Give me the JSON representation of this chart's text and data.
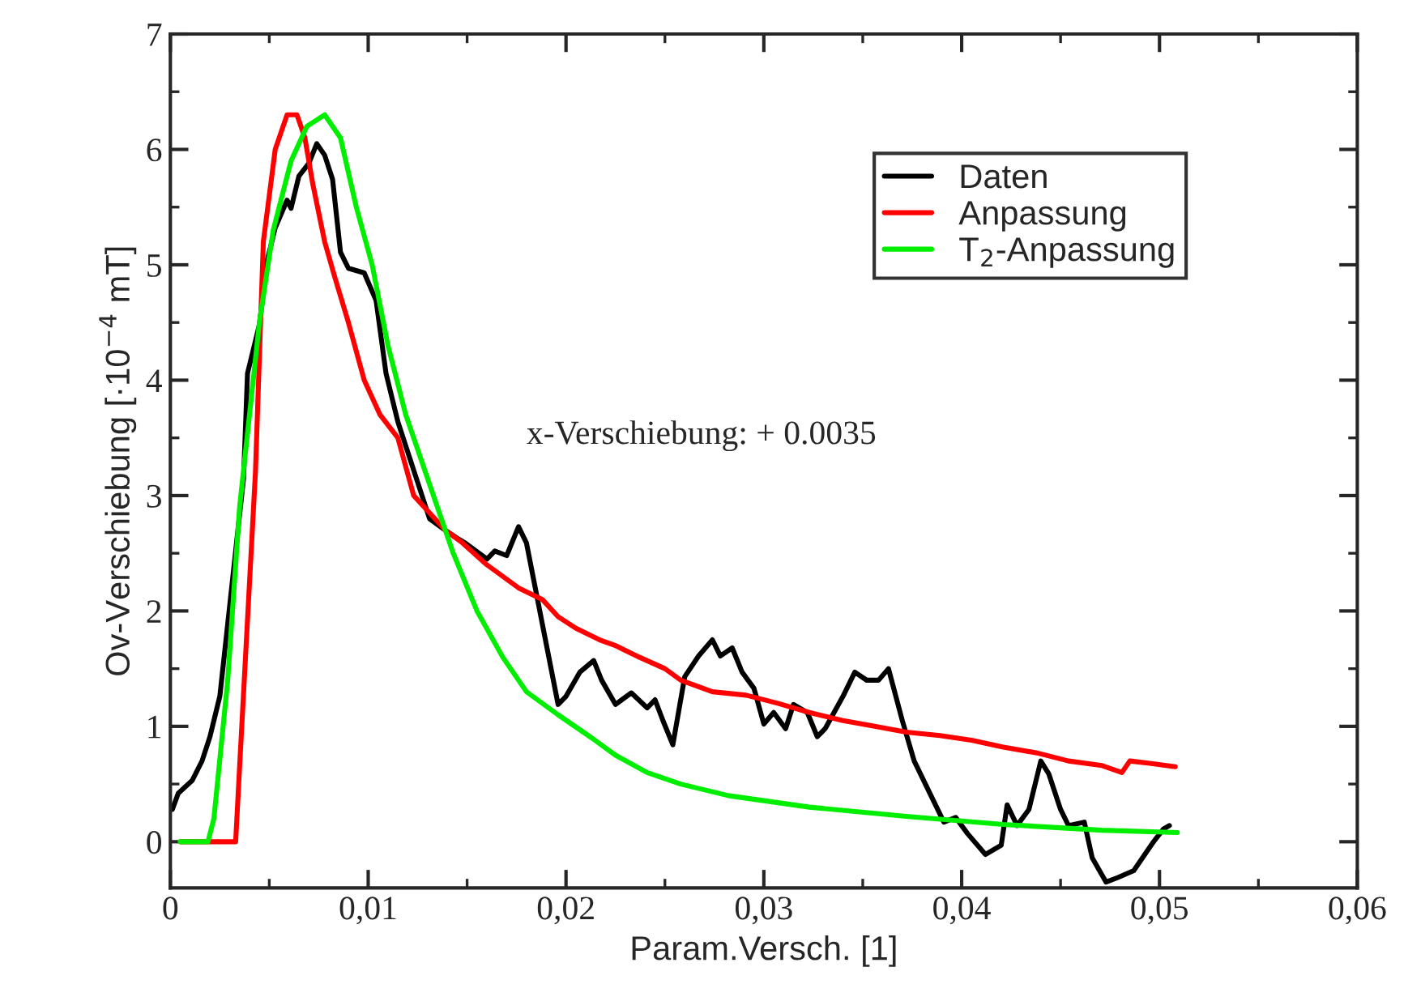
{
  "chart_data": {
    "type": "line",
    "xlabel": "Param.Versch. [1]",
    "ylabel": "Ov-Verschiebung [·10$^{−4}$ mT]",
    "xlim": [
      0,
      0.06
    ],
    "ylim": [
      -0.4,
      7
    ],
    "xticks": [
      0,
      {
        "value": 0.01,
        "label": "0,01"
      },
      {
        "value": 0.02,
        "label": "0,02"
      },
      {
        "value": 0.03,
        "label": "0,03"
      },
      {
        "value": 0.04,
        "label": "0,04"
      },
      {
        "value": 0.05,
        "label": "0,05"
      },
      {
        "value": 0.06,
        "label": "0,06"
      }
    ],
    "yticks": [
      0,
      1,
      2,
      3,
      4,
      5,
      6,
      7
    ],
    "grid": false,
    "legend": "top right",
    "marker": "none",
    "line_style": "solid",
    "annotations": [
      "x-Verschiebung: + 0.0035"
    ],
    "series": [
      {
        "name": "Daten",
        "color": "#000000",
        "x": [
          0.0001,
          0.0004,
          0.0011,
          0.0016,
          0.002,
          0.0025,
          0.0029,
          0.0033,
          0.0037,
          0.0039,
          0.0045,
          0.0049,
          0.0053,
          0.0059,
          0.0061,
          0.0065,
          0.007,
          0.0074,
          0.0078,
          0.0082,
          0.0086,
          0.009,
          0.0098,
          0.0104,
          0.0109,
          0.0115,
          0.0123,
          0.0131,
          0.0139,
          0.0145,
          0.0149,
          0.016,
          0.0164,
          0.017,
          0.0176,
          0.018,
          0.0188,
          0.0196,
          0.02,
          0.0207,
          0.0214,
          0.0218,
          0.0225,
          0.0233,
          0.0241,
          0.0245,
          0.0249,
          0.0254,
          0.026,
          0.0267,
          0.0274,
          0.0278,
          0.0284,
          0.0289,
          0.0295,
          0.03,
          0.0305,
          0.0311,
          0.0315,
          0.0322,
          0.0327,
          0.0331,
          0.034,
          0.0346,
          0.0352,
          0.0358,
          0.0363,
          0.037,
          0.0376,
          0.0391,
          0.0397,
          0.0403,
          0.0412,
          0.042,
          0.0423,
          0.0428,
          0.0434,
          0.044,
          0.0444,
          0.045,
          0.0454,
          0.0462,
          0.0466,
          0.0473,
          0.0479,
          0.0487,
          0.0497,
          0.0502,
          0.0505
        ],
        "values": [
          0.28,
          0.42,
          0.53,
          0.7,
          0.91,
          1.26,
          1.89,
          2.52,
          3.15,
          4.06,
          4.48,
          5.04,
          5.32,
          5.56,
          5.49,
          5.77,
          5.88,
          6.05,
          5.95,
          5.74,
          5.11,
          4.97,
          4.93,
          4.69,
          4.06,
          3.64,
          3.22,
          2.8,
          2.7,
          2.63,
          2.59,
          2.45,
          2.52,
          2.48,
          2.73,
          2.59,
          1.89,
          1.19,
          1.26,
          1.47,
          1.57,
          1.4,
          1.19,
          1.29,
          1.16,
          1.23,
          1.05,
          0.84,
          1.43,
          1.61,
          1.75,
          1.61,
          1.68,
          1.47,
          1.33,
          1.02,
          1.12,
          0.98,
          1.19,
          1.12,
          0.91,
          0.98,
          1.26,
          1.47,
          1.4,
          1.4,
          1.5,
          1.05,
          0.7,
          0.17,
          0.21,
          0.07,
          -0.11,
          -0.03,
          0.32,
          0.14,
          0.28,
          0.7,
          0.59,
          0.28,
          0.14,
          0.17,
          -0.14,
          -0.35,
          -0.31,
          -0.25,
          0,
          0.11,
          0.14
        ]
      },
      {
        "name": "Anpassung",
        "color": "#ff0000",
        "x": [
          0.0005,
          0.0033,
          0.0035,
          0.0043,
          0.0047,
          0.0053,
          0.0059,
          0.0064,
          0.0068,
          0.0072,
          0.0078,
          0.0083,
          0.009,
          0.0098,
          0.0106,
          0.0115,
          0.0123,
          0.0131,
          0.0139,
          0.0147,
          0.016,
          0.0168,
          0.0176,
          0.0188,
          0.0196,
          0.0205,
          0.0217,
          0.0225,
          0.0237,
          0.025,
          0.0258,
          0.0274,
          0.0291,
          0.0307,
          0.0323,
          0.034,
          0.0356,
          0.0372,
          0.0389,
          0.0405,
          0.0421,
          0.0438,
          0.0454,
          0.0471,
          0.0481,
          0.0485,
          0.0495,
          0.0508
        ],
        "values": [
          0,
          0,
          0.65,
          3.2,
          5.2,
          6.0,
          6.3,
          6.3,
          6.1,
          5.7,
          5.2,
          4.9,
          4.5,
          4.0,
          3.7,
          3.5,
          3.0,
          2.85,
          2.7,
          2.6,
          2.4,
          2.3,
          2.2,
          2.1,
          1.95,
          1.85,
          1.75,
          1.7,
          1.6,
          1.5,
          1.4,
          1.3,
          1.27,
          1.2,
          1.12,
          1.05,
          1.0,
          0.95,
          0.92,
          0.88,
          0.82,
          0.77,
          0.7,
          0.66,
          0.6,
          0.7,
          0.68,
          0.65
        ]
      },
      {
        "name": "T$_{2}$-Anpassung",
        "color": "#00ee00",
        "x": [
          0.0005,
          0.0019,
          0.0022,
          0.0029,
          0.0035,
          0.0045,
          0.0052,
          0.0061,
          0.0069,
          0.0078,
          0.0086,
          0.0094,
          0.0102,
          0.011,
          0.0119,
          0.0131,
          0.0143,
          0.0155,
          0.0168,
          0.018,
          0.0196,
          0.0213,
          0.0225,
          0.0241,
          0.0258,
          0.0282,
          0.0323,
          0.0372,
          0.0421,
          0.0471,
          0.0509
        ],
        "values": [
          0,
          0,
          0.2,
          1.4,
          2.9,
          4.5,
          5.3,
          5.9,
          6.2,
          6.3,
          6.1,
          5.5,
          5.0,
          4.3,
          3.7,
          3.1,
          2.5,
          2.0,
          1.6,
          1.3,
          1.1,
          0.9,
          0.75,
          0.6,
          0.5,
          0.4,
          0.3,
          0.22,
          0.15,
          0.1,
          0.08
        ]
      }
    ]
  }
}
